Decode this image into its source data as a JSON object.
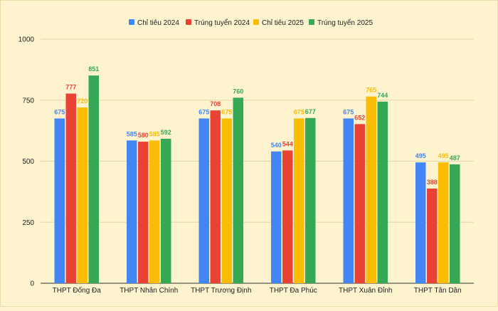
{
  "chart_data": {
    "type": "bar",
    "categories": [
      "THPT Đống Đa",
      "THPT Nhân Chính",
      "THPT Trương Định",
      "THPT Đa Phúc",
      "THPT Xuân Đỉnh",
      "THPT Tân Dân"
    ],
    "series": [
      {
        "name": "Chỉ tiêu 2024",
        "color": "#4285f4",
        "values": [
          675,
          585,
          675,
          540,
          675,
          495
        ]
      },
      {
        "name": "Trúng tuyển 2024",
        "color": "#ea4335",
        "values": [
          777,
          580,
          708,
          544,
          652,
          388
        ]
      },
      {
        "name": "Chỉ tiêu 2025",
        "color": "#fbbc04",
        "values": [
          720,
          585,
          675,
          675,
          765,
          495
        ]
      },
      {
        "name": "Trúng tuyển 2025",
        "color": "#34a853",
        "values": [
          851,
          592,
          760,
          677,
          744,
          487
        ]
      }
    ],
    "ylim": [
      0,
      1000
    ],
    "yticks": [
      0,
      250,
      500,
      750,
      1000
    ],
    "ytick_labels": [
      "0",
      "250",
      "500",
      "750",
      "1000"
    ],
    "grid": true,
    "legend_position": "top",
    "title": "",
    "xlabel": "",
    "ylabel": ""
  }
}
